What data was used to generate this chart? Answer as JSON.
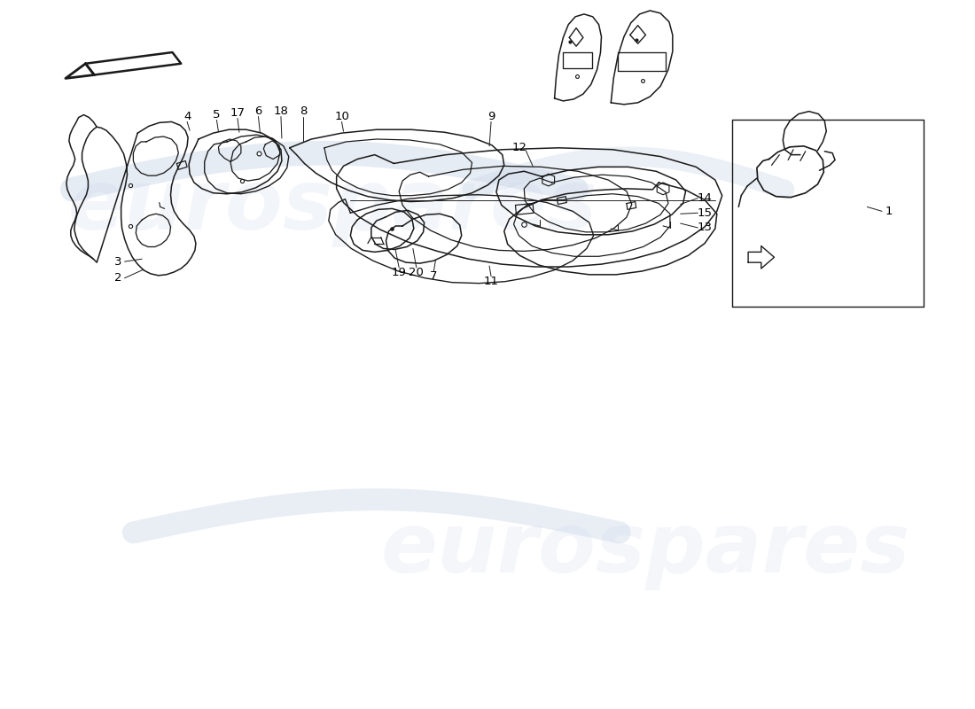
{
  "background_color": "#ffffff",
  "line_color": "#1a1a1a",
  "watermark_color": "#c8d5e8",
  "watermark_text": "eurospares",
  "fig_width": 11.0,
  "fig_height": 8.0,
  "lw": 1.1
}
